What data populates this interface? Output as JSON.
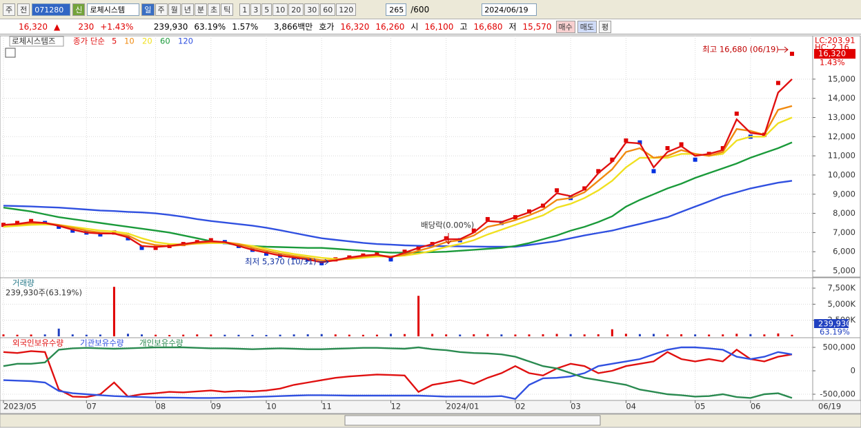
{
  "toolbar": {
    "period": "주",
    "prev": "전",
    "code": "071280",
    "new": "신",
    "name": "로체시스템",
    "units": [
      "일",
      "주",
      "월",
      "년",
      "분",
      "초",
      "틱"
    ],
    "counts": [
      "1",
      "3",
      "5",
      "10",
      "20",
      "30",
      "60",
      "120"
    ],
    "count": "265",
    "max": "/600",
    "date": "2024/06/19"
  },
  "quote": {
    "price": "16,320",
    "arrow": "▲",
    "change": "230",
    "change_pct": "+1.43%",
    "volume": "239,930",
    "volume_ratio": "63.19%",
    "turnover": "1.57%",
    "amount": "3,866백만",
    "ask_label": "호가",
    "ask": "16,320",
    "bid": "16,260",
    "open_label": "시",
    "open": "16,100",
    "high_label": "고",
    "high": "16,680",
    "low_label": "저",
    "low": "15,570",
    "buy": "매수",
    "sell": "매도",
    "avg": "평"
  },
  "chart_data": [
    {
      "type": "price",
      "title": "로체시스템즈",
      "legend_label": "종가 단순",
      "lc": "LC:203.91",
      "hc": "HC: 2.16",
      "last_label": "16,320",
      "last_pct": "1.43%",
      "annotations": [
        "최고 16,680 (06/19)",
        "최저 5,370 (10/31)",
        "배당락(0.00%)"
      ],
      "color_up": "#e00000",
      "color_down": "#0030e0",
      "xlim": [
        0,
        57
      ],
      "ylim": [
        4750,
        17150
      ],
      "yticks": [
        {
          "value": 5000,
          "label": "5,000"
        },
        {
          "value": 6000,
          "label": "6,000"
        },
        {
          "value": 7000,
          "label": "7,000"
        },
        {
          "value": 8000,
          "label": "8,000"
        },
        {
          "value": 9000,
          "label": "9,000"
        },
        {
          "value": 10000,
          "label": "10,000"
        },
        {
          "value": 11000,
          "label": "11,000"
        },
        {
          "value": 12000,
          "label": "12,000"
        },
        {
          "value": 13000,
          "label": "13,000"
        },
        {
          "value": 14000,
          "label": "14,000"
        },
        {
          "value": 15000,
          "label": "15,000"
        }
      ],
      "values": [
        7400,
        7500,
        7600,
        7500,
        7300,
        7100,
        7000,
        6900,
        7000,
        6700,
        6200,
        6200,
        6300,
        6400,
        6500,
        6600,
        6500,
        6300,
        6100,
        5900,
        5800,
        5700,
        5600,
        5400,
        5600,
        5700,
        5800,
        5900,
        5600,
        6000,
        6200,
        6400,
        6700,
        6600,
        7100,
        7700,
        7500,
        7800,
        8100,
        8400,
        9200,
        8800,
        9300,
        10200,
        10800,
        11800,
        11700,
        10200,
        11400,
        11600,
        10800,
        11100,
        11400,
        13200,
        12000,
        12100,
        14800,
        16320
      ],
      "series": [
        {
          "name": "5",
          "color": "#e01010",
          "values": [
            7400,
            7450,
            7550,
            7500,
            7350,
            7150,
            7000,
            6950,
            6950,
            6750,
            6300,
            6250,
            6300,
            6400,
            6500,
            6550,
            6500,
            6300,
            6100,
            5950,
            5800,
            5700,
            5600,
            5450,
            5550,
            5700,
            5800,
            5850,
            5700,
            5950,
            6200,
            6400,
            6650,
            6650,
            7000,
            7600,
            7550,
            7800,
            8050,
            8400,
            9050,
            8900,
            9250,
            10100,
            10700,
            11700,
            11650,
            10400,
            11200,
            11500,
            11000,
            11100,
            11300,
            12900,
            12200,
            12100,
            14300,
            15000
          ]
        },
        {
          "name": "10",
          "color": "#f08a10",
          "values": [
            7400,
            7420,
            7480,
            7500,
            7400,
            7250,
            7100,
            7000,
            6950,
            6850,
            6500,
            6350,
            6300,
            6350,
            6450,
            6500,
            6500,
            6400,
            6200,
            6050,
            5900,
            5780,
            5680,
            5550,
            5550,
            5650,
            5750,
            5820,
            5750,
            5850,
            6050,
            6250,
            6500,
            6600,
            6850,
            7300,
            7450,
            7650,
            7900,
            8200,
            8700,
            8800,
            9100,
            9700,
            10300,
            11200,
            11400,
            10900,
            11000,
            11300,
            11100,
            11000,
            11200,
            12400,
            12300,
            12100,
            13400,
            13600
          ]
        },
        {
          "name": "20",
          "color": "#f0e020",
          "values": [
            7300,
            7350,
            7400,
            7420,
            7400,
            7300,
            7200,
            7100,
            7050,
            6950,
            6700,
            6500,
            6400,
            6380,
            6420,
            6450,
            6450,
            6400,
            6300,
            6150,
            6000,
            5880,
            5780,
            5680,
            5620,
            5620,
            5680,
            5750,
            5750,
            5800,
            5900,
            6050,
            6250,
            6400,
            6600,
            6900,
            7150,
            7400,
            7650,
            7900,
            8300,
            8500,
            8800,
            9200,
            9700,
            10400,
            10900,
            10900,
            10900,
            11100,
            11100,
            11000,
            11100,
            11800,
            12000,
            12000,
            12700,
            13000
          ]
        },
        {
          "name": "60",
          "color": "#1a9a3a",
          "values": [
            8300,
            8200,
            8100,
            7950,
            7800,
            7700,
            7600,
            7500,
            7400,
            7300,
            7200,
            7100,
            7000,
            6850,
            6700,
            6550,
            6450,
            6350,
            6300,
            6260,
            6240,
            6220,
            6200,
            6200,
            6150,
            6100,
            6050,
            6000,
            5950,
            5950,
            5960,
            5980,
            6000,
            6050,
            6100,
            6150,
            6200,
            6300,
            6450,
            6650,
            6850,
            7100,
            7300,
            7550,
            7850,
            8350,
            8700,
            9000,
            9300,
            9550,
            9850,
            10100,
            10350,
            10600,
            10900,
            11150,
            11400,
            11700
          ]
        },
        {
          "name": "120",
          "color": "#3050e0",
          "values": [
            8400,
            8380,
            8360,
            8330,
            8300,
            8250,
            8200,
            8150,
            8120,
            8080,
            8050,
            8000,
            7920,
            7820,
            7700,
            7600,
            7520,
            7440,
            7360,
            7250,
            7120,
            6980,
            6840,
            6700,
            6620,
            6540,
            6460,
            6400,
            6370,
            6330,
            6310,
            6300,
            6290,
            6280,
            6270,
            6260,
            6260,
            6260,
            6350,
            6450,
            6550,
            6700,
            6850,
            6980,
            7100,
            7280,
            7450,
            7620,
            7800,
            8080,
            8350,
            8620,
            8900,
            9100,
            9300,
            9450,
            9600,
            9700
          ]
        }
      ]
    },
    {
      "type": "bar",
      "title": "거래량",
      "subtitle": "239,930주(63.19%)",
      "last_label": "239,930",
      "last_pct": "63.19%",
      "color": "#2040c0",
      "xlim": [
        0,
        57
      ],
      "ylim": [
        0,
        8900
      ],
      "yticks": [
        {
          "value": 2500,
          "label": "2,500K"
        },
        {
          "value": 5000,
          "label": "5,000K"
        },
        {
          "value": 7500,
          "label": "7,500K"
        }
      ],
      "values": [
        300,
        250,
        280,
        300,
        1200,
        300,
        250,
        280,
        7700,
        400,
        300,
        250,
        220,
        260,
        300,
        280,
        250,
        240,
        230,
        220,
        260,
        300,
        320,
        350,
        300,
        260,
        240,
        260,
        400,
        350,
        6300,
        380,
        300,
        280,
        320,
        350,
        300,
        280,
        300,
        320,
        380,
        350,
        300,
        320,
        1100,
        400,
        350,
        380,
        300,
        320,
        300,
        280,
        300,
        400,
        350,
        300,
        450,
        240
      ]
    },
    {
      "type": "line",
      "xlim": [
        0,
        57
      ],
      "ylim": [
        -617600,
        603000
      ],
      "yticks": [
        {
          "value": -500000,
          "label": "-500,000"
        },
        0,
        {
          "value": 500000,
          "label": "500,000"
        }
      ],
      "xticks": [
        {
          "value": 0,
          "label": "2023/05"
        },
        {
          "value": 6,
          "label": "07"
        },
        {
          "value": 11,
          "label": "08"
        },
        {
          "value": 15,
          "label": "09"
        },
        {
          "value": 19,
          "label": "10"
        },
        {
          "value": 23,
          "label": "11"
        },
        {
          "value": 28,
          "label": "12"
        },
        {
          "value": 32,
          "label": "2024/01"
        },
        {
          "value": 37,
          "label": "02"
        },
        {
          "value": 41,
          "label": "03"
        },
        {
          "value": 45,
          "label": "04"
        },
        {
          "value": 50,
          "label": "05"
        },
        {
          "value": 54,
          "label": "06"
        }
      ],
      "x_end_label": "06/19",
      "series": [
        {
          "name": "외국인보유수량",
          "color": "#e01010",
          "values": [
            400000,
            380000,
            420000,
            400000,
            -400000,
            -550000,
            -560000,
            -500000,
            -250000,
            -550000,
            -500000,
            -480000,
            -450000,
            -460000,
            -440000,
            -420000,
            -450000,
            -430000,
            -440000,
            -420000,
            -380000,
            -300000,
            -250000,
            -200000,
            -150000,
            -120000,
            -100000,
            -80000,
            -90000,
            -100000,
            -450000,
            -300000,
            -250000,
            -200000,
            -280000,
            -150000,
            -50000,
            100000,
            -50000,
            -100000,
            50000,
            150000,
            100000,
            -50000,
            0,
            100000,
            150000,
            200000,
            400000,
            250000,
            200000,
            250000,
            200000,
            450000,
            250000,
            200000,
            300000,
            350000
          ]
        },
        {
          "name": "기관보유수량",
          "color": "#3050e0",
          "values": [
            -200000,
            -210000,
            -220000,
            -250000,
            -430000,
            -480000,
            -500000,
            -520000,
            -540000,
            -550000,
            -560000,
            -570000,
            -570000,
            -575000,
            -580000,
            -580000,
            -575000,
            -570000,
            -560000,
            -550000,
            -540000,
            -530000,
            -520000,
            -520000,
            -525000,
            -530000,
            -530000,
            -530000,
            -530000,
            -530000,
            -530000,
            -540000,
            -550000,
            -550000,
            -550000,
            -550000,
            -540000,
            -600000,
            -300000,
            -160000,
            -150000,
            -120000,
            -50000,
            100000,
            150000,
            200000,
            250000,
            350000,
            450000,
            500000,
            500000,
            480000,
            450000,
            300000,
            250000,
            300000,
            400000,
            350000
          ]
        },
        {
          "name": "개인보유수량",
          "color": "#2a8a50",
          "values": [
            100000,
            150000,
            150000,
            180000,
            450000,
            480000,
            490000,
            480000,
            470000,
            480000,
            490000,
            500000,
            500000,
            500000,
            490000,
            480000,
            480000,
            470000,
            460000,
            470000,
            480000,
            470000,
            460000,
            460000,
            470000,
            480000,
            490000,
            490000,
            480000,
            470000,
            500000,
            460000,
            440000,
            400000,
            380000,
            370000,
            350000,
            300000,
            200000,
            100000,
            50000,
            -50000,
            -150000,
            -200000,
            -250000,
            -300000,
            -400000,
            -450000,
            -500000,
            -520000,
            -550000,
            -540000,
            -500000,
            -560000,
            -580000,
            -500000,
            -480000,
            -580000
          ]
        }
      ]
    }
  ]
}
